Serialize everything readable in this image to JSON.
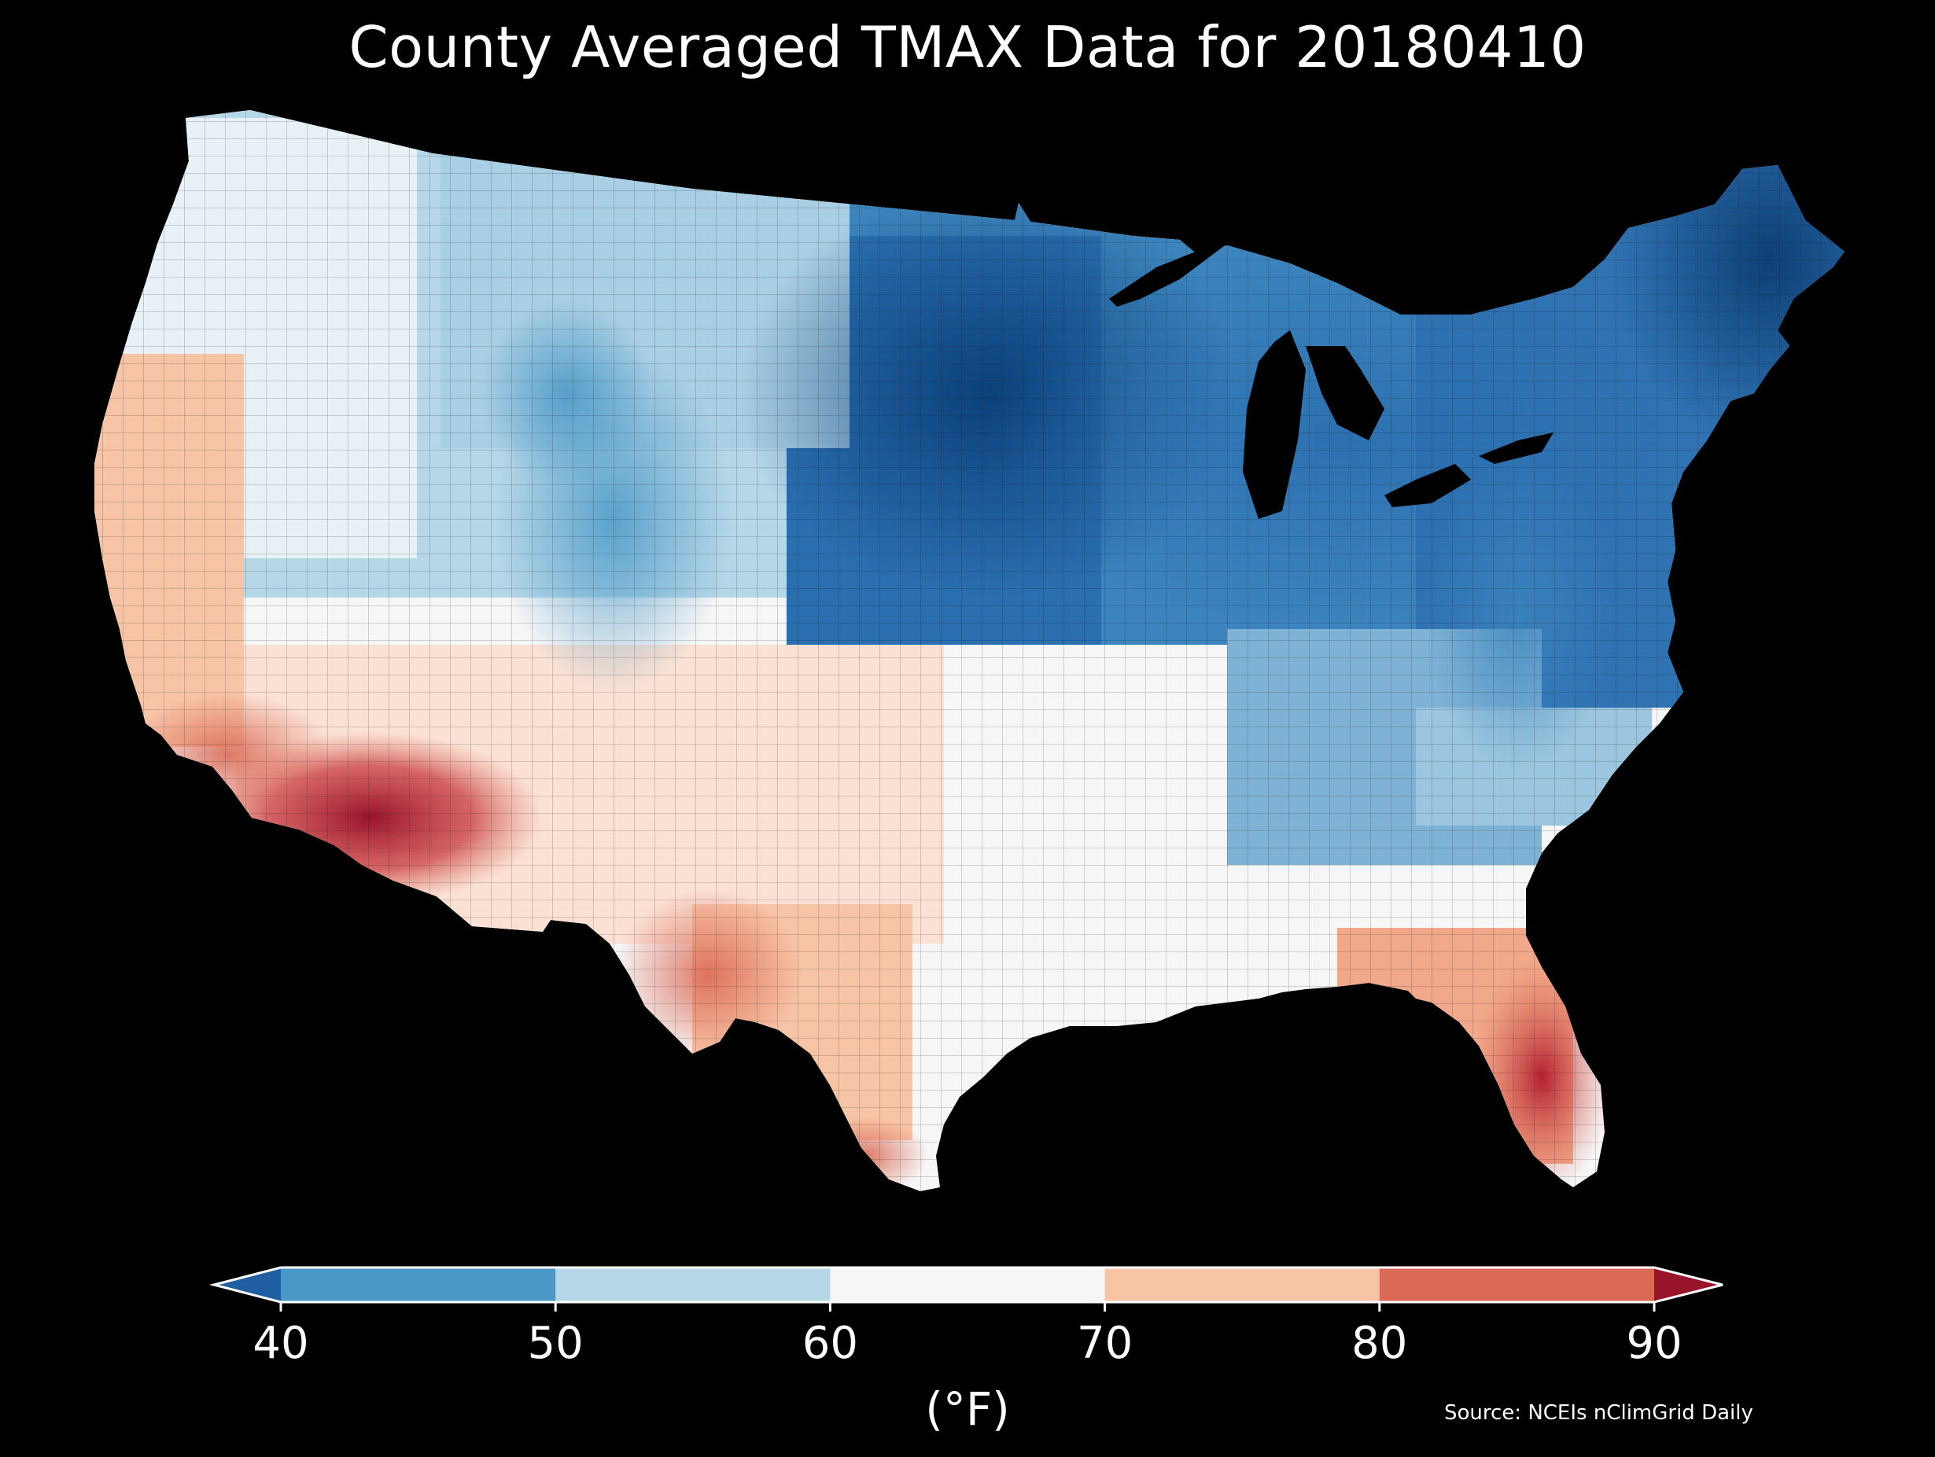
{
  "title": "County Averaged TMAX Data for 20180410",
  "colorbar": {
    "ticks": [
      "40",
      "50",
      "60",
      "70",
      "80",
      "90"
    ],
    "units": "(°F)",
    "bins": [
      {
        "range": "<40",
        "color": "#1f5ea0"
      },
      {
        "range": "40-50",
        "color": "#4a98c7"
      },
      {
        "range": "50-60",
        "color": "#b5d7e8"
      },
      {
        "range": "60-70",
        "color": "#f6f6f6"
      },
      {
        "range": "70-80",
        "color": "#f8c4a6"
      },
      {
        "range": "80-90",
        "color": "#db6a55"
      },
      {
        "range": ">90",
        "color": "#98142b"
      }
    ]
  },
  "source": "Source: NCEIs nClimGrid Daily",
  "colors": {
    "background": "#000000",
    "text": "#ffffff",
    "county_borders": "#111111"
  }
}
